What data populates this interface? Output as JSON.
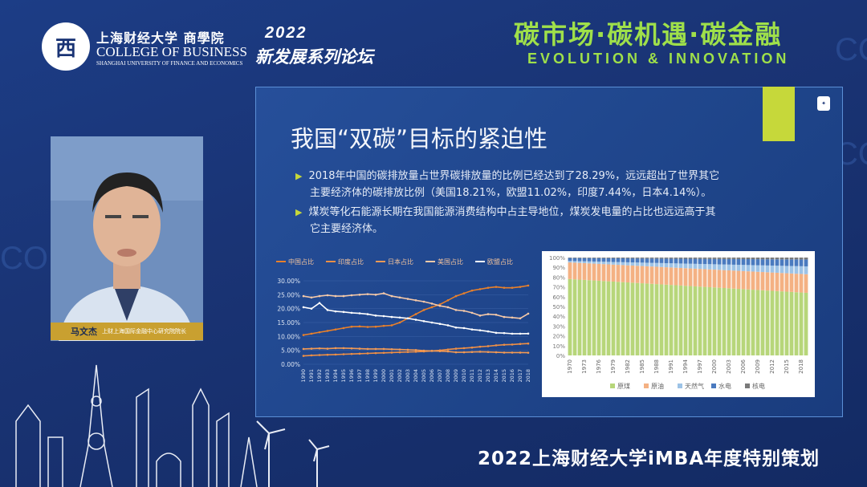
{
  "header": {
    "logo_glyph": "西",
    "school_cn": "上海财经大学 商學院",
    "school_en": "COLLEGE OF BUSINESS",
    "school_sub": "SHANGHAI UNIVERSITY OF FINANCE AND ECONOMICS",
    "forum_year": "2022",
    "forum_name": "新发展系列论坛",
    "theme_cn": "碳市场·碳机遇·碳金融",
    "theme_en": "EVOLUTION & INNOVATION"
  },
  "speaker": {
    "name": "马文杰",
    "title": "上财上海国际金融中心研究院院长"
  },
  "slide": {
    "title": "我国“双碳”目标的紧迫性",
    "bullet1_line1": "2018年中国的碳排放量占世界碳排放量的比例已经达到了28.29%，远远超出了世界其它",
    "bullet1_line2": "主要经济体的碳排放比例（美国18.21%，欧盟11.02%，印度7.44%，日本4.14%）。",
    "bullet2_line1": "煤炭等化石能源长期在我国能源消费结构中占主导地位，煤炭发电量的占比也远远高于其",
    "bullet2_line2": "它主要经济体。"
  },
  "footer": "2022上海财经大学iMBA年度特别策划",
  "colors": {
    "accent_green": "#9fe04a",
    "slide_bar": "#c6d83a",
    "caption_gold": "#c9a030"
  },
  "chart_data": [
    {
      "type": "line",
      "legend": [
        "中国占比",
        "印度占比",
        "日本占比",
        "美国占比",
        "欧盟占比"
      ],
      "yticks": [
        "0.00%",
        "5.00%",
        "10.00%",
        "15.00%",
        "20.00%",
        "25.00%",
        "30.00%"
      ],
      "ylim": [
        0,
        30
      ],
      "x": [
        1990,
        1991,
        1992,
        1993,
        1994,
        1995,
        1996,
        1997,
        1998,
        1999,
        2000,
        2001,
        2002,
        2003,
        2004,
        2005,
        2006,
        2007,
        2008,
        2009,
        2010,
        2011,
        2012,
        2013,
        2014,
        2015,
        2016,
        2017,
        2018
      ],
      "series": [
        {
          "name": "中国占比",
          "color": "#e8802b",
          "values": [
            10.5,
            11,
            11.5,
            12,
            12.5,
            13,
            13.5,
            13.6,
            13.4,
            13.5,
            13.8,
            14,
            15,
            16.5,
            18,
            19.5,
            20.5,
            21.5,
            23,
            24.5,
            25.5,
            26.5,
            27,
            27.5,
            27.8,
            27.5,
            27.5,
            27.8,
            28.29
          ]
        },
        {
          "name": "印度占比",
          "color": "#ef8f45",
          "values": [
            3,
            3.2,
            3.3,
            3.4,
            3.5,
            3.6,
            3.7,
            3.8,
            3.9,
            4,
            4.1,
            4.2,
            4.3,
            4.4,
            4.5,
            4.6,
            4.8,
            5,
            5.3,
            5.6,
            5.8,
            6,
            6.3,
            6.5,
            6.8,
            7,
            7.1,
            7.3,
            7.44
          ]
        },
        {
          "name": "日本占比",
          "color": "#f29a55",
          "values": [
            5.5,
            5.6,
            5.7,
            5.6,
            5.8,
            5.8,
            5.7,
            5.6,
            5.5,
            5.5,
            5.5,
            5.4,
            5.3,
            5.2,
            5.1,
            4.9,
            4.8,
            4.7,
            4.6,
            4.3,
            4.3,
            4.4,
            4.5,
            4.4,
            4.3,
            4.2,
            4.2,
            4.2,
            4.14
          ]
        },
        {
          "name": "美国占比",
          "color": "#f6c9a8",
          "values": [
            24.5,
            24,
            24.5,
            24.8,
            24.5,
            24.5,
            24.8,
            25,
            25.2,
            25,
            25.5,
            24.5,
            24,
            23.5,
            23,
            22.5,
            21.8,
            21,
            20.5,
            19.5,
            19.2,
            18.5,
            17.5,
            18,
            17.8,
            17,
            16.8,
            16.5,
            18.21
          ]
        },
        {
          "name": "欧盟占比",
          "color": "#ffffff",
          "values": [
            20.5,
            20,
            22,
            19.5,
            19,
            18.8,
            18.5,
            18.3,
            18,
            17.5,
            17.3,
            17,
            16.8,
            16.5,
            16,
            15.5,
            15,
            14.5,
            14,
            13.2,
            13,
            12.5,
            12.2,
            11.8,
            11.3,
            11.2,
            11,
            11,
            11.02
          ]
        }
      ]
    },
    {
      "type": "bar",
      "stacked": true,
      "legend": [
        "原煤",
        "原油",
        "天然气",
        "水电",
        "核电"
      ],
      "yticks": [
        "0%",
        "10%",
        "20%",
        "30%",
        "40%",
        "50%",
        "60%",
        "70%",
        "80%",
        "90%",
        "100%"
      ],
      "xticks": [
        "1970",
        "1973",
        "1976",
        "1979",
        "1982",
        "1985",
        "1988",
        "1991",
        "1994",
        "1997",
        "2000",
        "2003",
        "2006",
        "2009",
        "2012",
        "2015",
        "2018"
      ],
      "years_from": 1970,
      "years_to": 2019,
      "series": [
        {
          "name": "原煤",
          "color": "#b7d67a",
          "start": 78,
          "end": 64
        },
        {
          "name": "原油",
          "color": "#f4b183",
          "start": 17,
          "end": 19
        },
        {
          "name": "天然气",
          "color": "#9dc3e6",
          "start": 1.5,
          "end": 8
        },
        {
          "name": "水电",
          "color": "#4a7abf",
          "start": 3,
          "end": 7
        },
        {
          "name": "核电",
          "color": "#7a7a7a",
          "start": 0.5,
          "end": 2
        }
      ]
    }
  ]
}
